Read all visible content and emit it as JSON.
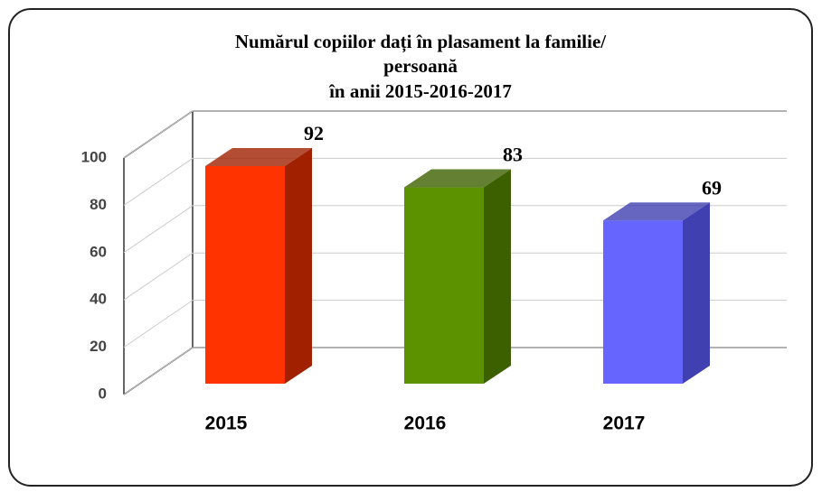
{
  "chart_data": {
    "type": "bar3d",
    "title": [
      "Numărul copiilor dați în plasament la familie/",
      "persoană",
      "în anii 2015-2016-2017"
    ],
    "categories": [
      "2015",
      "2016",
      "2017"
    ],
    "values": [
      92,
      83,
      69
    ],
    "colors": [
      "#ff3300",
      "#5c9100",
      "#6666ff"
    ],
    "side_colors": [
      "#a02000",
      "#3c6000",
      "#4040b0"
    ],
    "ylim": [
      0,
      100
    ],
    "yticks": [
      0,
      20,
      40,
      60,
      80,
      100
    ],
    "grid": true
  }
}
